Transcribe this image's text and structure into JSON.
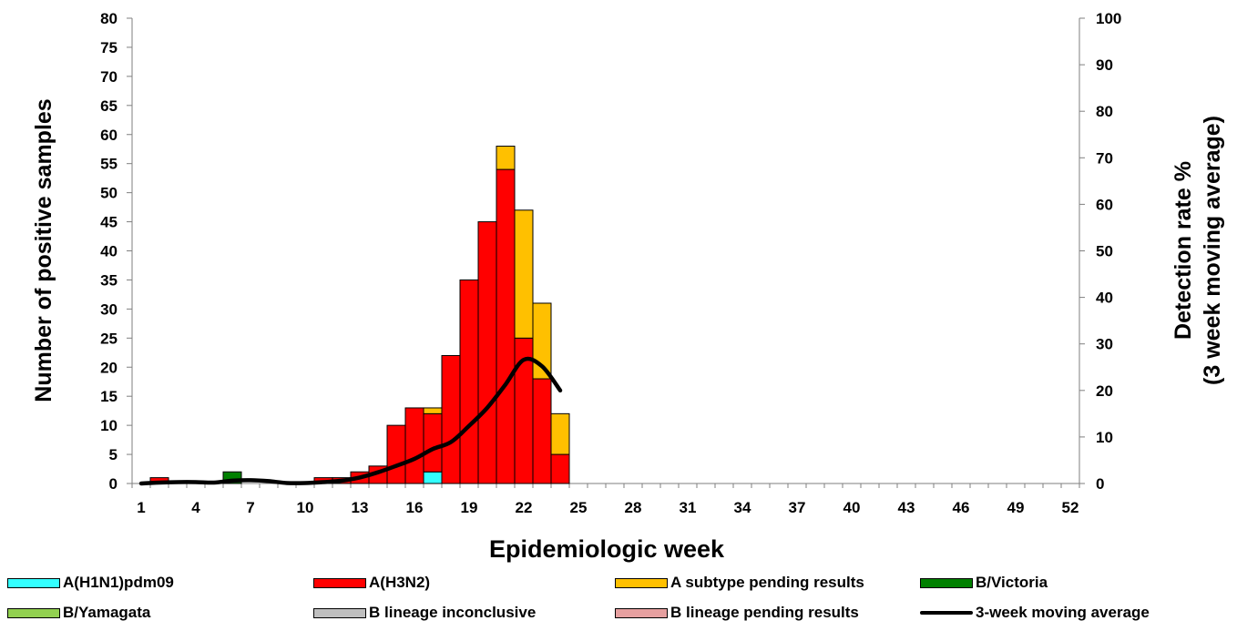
{
  "chart_data": {
    "type": "bar",
    "stacked": true,
    "xlabel": "Epidemiologic week",
    "ylabel": "Number of positive samples",
    "y2label_line1": "Detection rate %",
    "y2label_line2": "(3 week moving average)",
    "ylim": [
      0,
      80
    ],
    "yticks": [
      0,
      5,
      10,
      15,
      20,
      25,
      30,
      35,
      40,
      45,
      50,
      55,
      60,
      65,
      70,
      75,
      80
    ],
    "y2lim": [
      0,
      100
    ],
    "y2ticks": [
      0,
      10,
      20,
      30,
      40,
      50,
      60,
      70,
      80,
      90,
      100
    ],
    "xlim": [
      1,
      52
    ],
    "xticks": [
      1,
      4,
      7,
      10,
      13,
      16,
      19,
      22,
      25,
      28,
      31,
      34,
      37,
      40,
      43,
      46,
      49,
      52
    ],
    "series": [
      {
        "name": "A(H1N1)pdm09",
        "color": "#33ffff",
        "points": [
          [
            17,
            2
          ]
        ]
      },
      {
        "name": "A(H3N2)",
        "color": "#ff0000",
        "points": [
          [
            2,
            1
          ],
          [
            11,
            1
          ],
          [
            12,
            1
          ],
          [
            13,
            2
          ],
          [
            14,
            3
          ],
          [
            15,
            10
          ],
          [
            16,
            13
          ],
          [
            17,
            10
          ],
          [
            18,
            22
          ],
          [
            19,
            35
          ],
          [
            20,
            45
          ],
          [
            21,
            54
          ],
          [
            22,
            25
          ],
          [
            23,
            18
          ],
          [
            24,
            5
          ]
        ]
      },
      {
        "name": "A subtype pending results",
        "color": "#ffc000",
        "points": [
          [
            17,
            1
          ],
          [
            21,
            4
          ],
          [
            22,
            22
          ],
          [
            23,
            13
          ],
          [
            24,
            7
          ]
        ]
      },
      {
        "name": "B/Victoria",
        "color": "#008000",
        "points": [
          [
            6,
            2
          ]
        ]
      },
      {
        "name": "B/Yamagata",
        "color": "#92d050",
        "points": []
      },
      {
        "name": "B lineage inconclusive",
        "color": "#bfbfbf",
        "points": []
      },
      {
        "name": "B lineage pending results",
        "color": "#e6a0a0",
        "points": []
      }
    ],
    "line": {
      "name": "3-week moving average",
      "color": "#000000",
      "axis": "right",
      "points": [
        [
          1,
          0
        ],
        [
          2,
          0.2
        ],
        [
          3,
          0.3
        ],
        [
          4,
          0.3
        ],
        [
          5,
          0.2
        ],
        [
          6,
          0.6
        ],
        [
          7,
          0.7
        ],
        [
          8,
          0.5
        ],
        [
          9,
          0.1
        ],
        [
          10,
          0.1
        ],
        [
          11,
          0.3
        ],
        [
          12,
          0.6
        ],
        [
          13,
          1.3
        ],
        [
          14,
          2.4
        ],
        [
          15,
          3.8
        ],
        [
          16,
          5.3
        ],
        [
          17,
          7.4
        ],
        [
          18,
          8.9
        ],
        [
          19,
          12.4
        ],
        [
          20,
          16.3
        ],
        [
          21,
          21.3
        ],
        [
          22,
          26.6
        ],
        [
          23,
          25.2
        ],
        [
          24,
          20.0
        ]
      ]
    },
    "legend_position": "bottom",
    "grid": false
  }
}
